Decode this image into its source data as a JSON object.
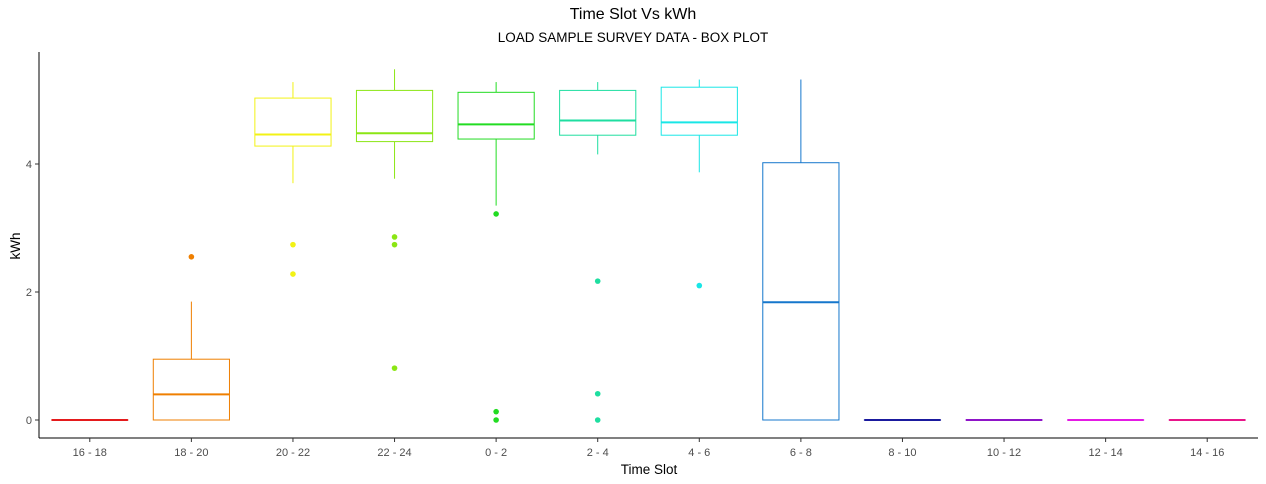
{
  "chart_data": {
    "type": "box",
    "title": "Time Slot Vs kWh",
    "subtitle": "LOAD SAMPLE SURVEY DATA - BOX PLOT",
    "xlabel": "Time Slot",
    "ylabel": "kWh",
    "ylim": [
      -0.25,
      5.7
    ],
    "yticks": [
      0,
      2,
      4
    ],
    "grid": false,
    "legend": "none",
    "categories": [
      "16 - 18",
      "18 - 20",
      "20 - 22",
      "22 - 24",
      "0 - 2",
      "2 - 4",
      "4 - 6",
      "6 - 8",
      "8 - 10",
      "10 - 12",
      "12 - 14",
      "14 - 16"
    ],
    "boxes": [
      {
        "category": "16 - 18",
        "color": "#e41a1c",
        "min": 0,
        "q1": 0,
        "median": 0,
        "q3": 0,
        "max": 0,
        "outliers": []
      },
      {
        "category": "18 - 20",
        "color": "#ef7f00",
        "min": 0,
        "q1": 0,
        "median": 0.4,
        "q3": 0.95,
        "max": 1.85,
        "outliers": [
          2.55
        ]
      },
      {
        "category": "20 - 22",
        "color": "#f2f215",
        "min": 3.7,
        "q1": 4.28,
        "median": 4.46,
        "q3": 5.03,
        "max": 5.28,
        "outliers": [
          2.74,
          2.28
        ]
      },
      {
        "category": "22 - 24",
        "color": "#8be614",
        "min": 3.77,
        "q1": 4.35,
        "median": 4.48,
        "q3": 5.15,
        "max": 5.48,
        "outliers": [
          2.86,
          2.74,
          0.81
        ]
      },
      {
        "category": "0 - 2",
        "color": "#22dc22",
        "min": 3.35,
        "q1": 4.39,
        "median": 4.62,
        "q3": 5.12,
        "max": 5.28,
        "outliers": [
          3.22,
          0.13,
          0.0
        ]
      },
      {
        "category": "2 - 4",
        "color": "#1edea0",
        "min": 4.15,
        "q1": 4.45,
        "median": 4.68,
        "q3": 5.15,
        "max": 5.28,
        "outliers": [
          2.17,
          0.41,
          0.0
        ]
      },
      {
        "category": "4 - 6",
        "color": "#19e6e6",
        "min": 3.87,
        "q1": 4.45,
        "median": 4.65,
        "q3": 5.2,
        "max": 5.32,
        "outliers": [
          2.1
        ]
      },
      {
        "category": "6 - 8",
        "color": "#1577cc",
        "min": 0,
        "q1": 0,
        "median": 1.84,
        "q3": 4.02,
        "max": 5.32,
        "outliers": []
      },
      {
        "category": "8 - 10",
        "color": "#1a1a9e",
        "min": 0,
        "q1": 0,
        "median": 0,
        "q3": 0,
        "max": 0,
        "outliers": []
      },
      {
        "category": "10 - 12",
        "color": "#8f14c8",
        "min": 0,
        "q1": 0,
        "median": 0,
        "q3": 0,
        "max": 0,
        "outliers": []
      },
      {
        "category": "12 - 14",
        "color": "#e41ae4",
        "min": 0,
        "q1": 0,
        "median": 0,
        "q3": 0,
        "max": 0,
        "outliers": []
      },
      {
        "category": "14 - 16",
        "color": "#e8158a",
        "min": 0,
        "q1": 0,
        "median": 0,
        "q3": 0,
        "max": 0,
        "outliers": []
      }
    ]
  }
}
